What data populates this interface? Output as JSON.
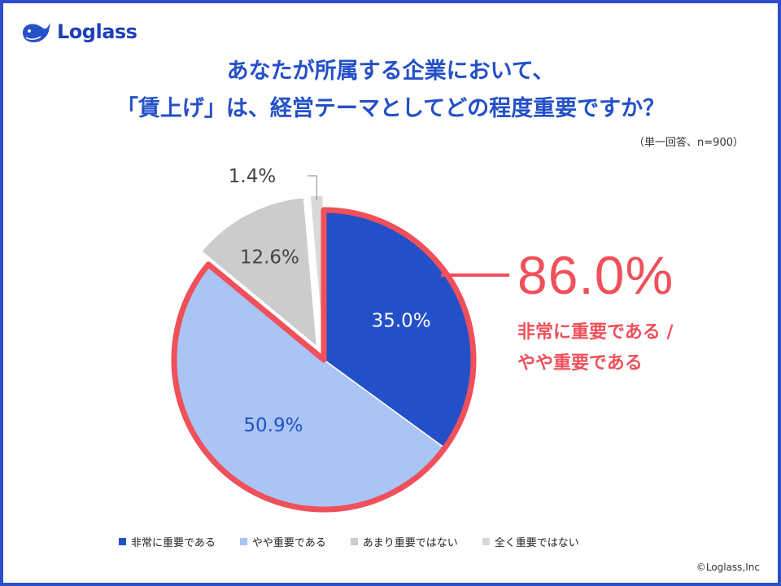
{
  "brand": {
    "name": "Loglass",
    "copyright": "©Loglass,Inc"
  },
  "title_line1": "あなたが所属する企業において、",
  "title_line2": "「賃上げ」は、経営テーマとしてどの程度重要ですか？",
  "note": "（単一回答、n=900）",
  "callout": {
    "value": "86.0%",
    "label_line1": "非常に重要である /",
    "label_line2": "やや重要である"
  },
  "colors": {
    "frame": "#2a4fc7",
    "title": "#2450c8",
    "highlight": "#f0505a",
    "series": [
      "#2350c8",
      "#aac4f4",
      "#cccccc",
      "#d9d9d9"
    ]
  },
  "chart_data": {
    "type": "pie",
    "title": "あなたが所属する企業において、「賃上げ」は、経営テーマとしてどの程度重要ですか？",
    "categories": [
      "非常に重要である",
      "やや重要である",
      "あまり重要ではない",
      "全く重要ではない"
    ],
    "values": [
      35.0,
      50.9,
      12.6,
      1.4
    ],
    "labels": [
      "35.0%",
      "50.9%",
      "12.6%",
      "1.4%"
    ],
    "exploded": [
      false,
      false,
      true,
      true
    ],
    "highlighted_total": 86.0,
    "legend": "bottom"
  }
}
